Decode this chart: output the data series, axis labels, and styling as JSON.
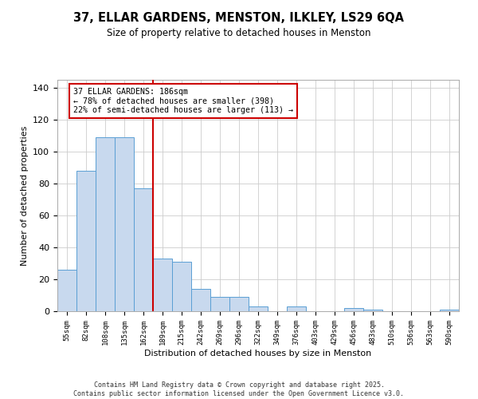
{
  "title": "37, ELLAR GARDENS, MENSTON, ILKLEY, LS29 6QA",
  "subtitle": "Size of property relative to detached houses in Menston",
  "xlabel": "Distribution of detached houses by size in Menston",
  "ylabel": "Number of detached properties",
  "categories": [
    "55sqm",
    "82sqm",
    "108sqm",
    "135sqm",
    "162sqm",
    "189sqm",
    "215sqm",
    "242sqm",
    "269sqm",
    "296sqm",
    "322sqm",
    "349sqm",
    "376sqm",
    "403sqm",
    "429sqm",
    "456sqm",
    "483sqm",
    "510sqm",
    "536sqm",
    "563sqm",
    "590sqm"
  ],
  "values": [
    26,
    88,
    109,
    109,
    77,
    33,
    31,
    14,
    9,
    9,
    3,
    0,
    3,
    0,
    0,
    2,
    1,
    0,
    0,
    0,
    1
  ],
  "bar_color": "#c8d9ee",
  "bar_edge_color": "#5a9fd4",
  "vline_color": "#cc0000",
  "annotation_title": "37 ELLAR GARDENS: 186sqm",
  "annotation_line1": "← 78% of detached houses are smaller (398)",
  "annotation_line2": "22% of semi-detached houses are larger (113) →",
  "ylim": [
    0,
    145
  ],
  "yticks": [
    0,
    20,
    40,
    60,
    80,
    100,
    120,
    140
  ],
  "footer1": "Contains HM Land Registry data © Crown copyright and database right 2025.",
  "footer2": "Contains public sector information licensed under the Open Government Licence v3.0.",
  "background_color": "#ffffff",
  "grid_color": "#cccccc"
}
